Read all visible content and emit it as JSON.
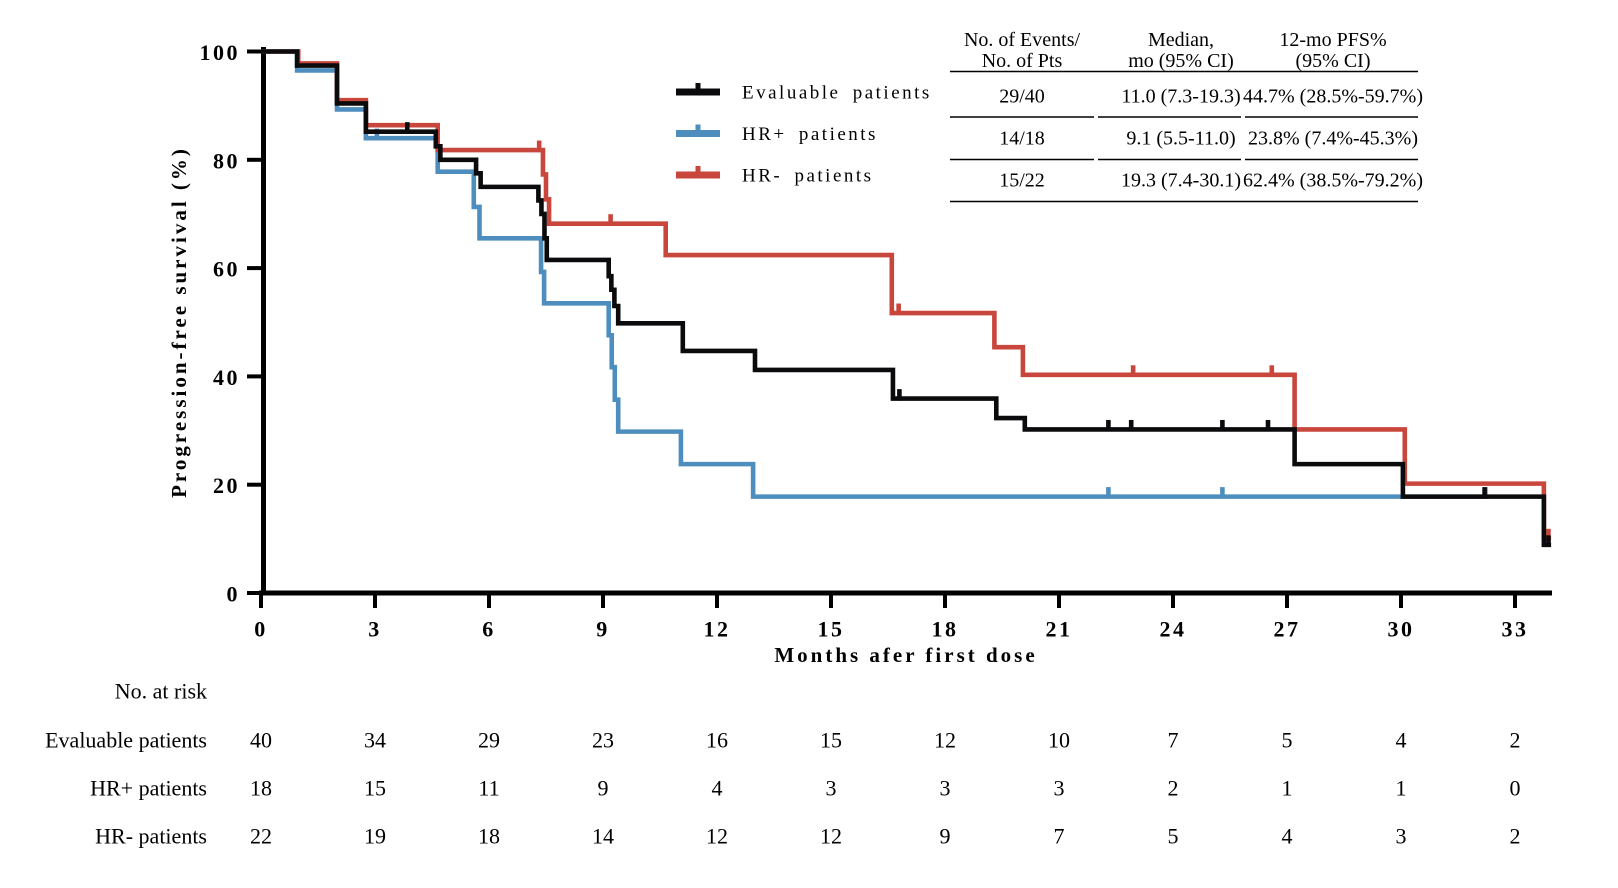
{
  "figure_title": "",
  "legend": [
    {
      "label": "Evaluable patients",
      "color": "#0b0b0d"
    },
    {
      "label": "HR+ patients",
      "color": "#4e8ebf"
    },
    {
      "label": "HR- patients",
      "color": "#c9463d"
    }
  ],
  "stats_table": {
    "headers": [
      {
        "line1": "No. of Events/",
        "line2": "No. of Pts"
      },
      {
        "line1": "Median,",
        "line2": "mo (95% CI)"
      },
      {
        "line1": "12-mo PFS%",
        "line2": "(95% CI)"
      }
    ],
    "rows": [
      [
        "29/40",
        "11.0 (7.3-19.3)",
        "44.7% (28.5%-59.7%)"
      ],
      [
        "14/18",
        "9.1 (5.5-11.0)",
        "23.8% (7.4%-45.3%)"
      ],
      [
        "15/22",
        "19.3 (7.4-30.1)",
        "62.4% (38.5%-79.2%)"
      ]
    ]
  },
  "risk_table": {
    "title": "No. at risk",
    "months": [
      0,
      3,
      6,
      9,
      12,
      15,
      18,
      21,
      24,
      27,
      30,
      33
    ],
    "rows": [
      {
        "label": "Evaluable patients",
        "values": [
          40,
          34,
          29,
          23,
          16,
          15,
          12,
          10,
          7,
          5,
          4,
          2
        ]
      },
      {
        "label": "HR+ patients",
        "values": [
          18,
          15,
          11,
          9,
          4,
          3,
          3,
          3,
          2,
          1,
          1,
          0
        ]
      },
      {
        "label": "HR- patients",
        "values": [
          22,
          19,
          18,
          14,
          12,
          12,
          9,
          7,
          5,
          4,
          3,
          2
        ]
      }
    ]
  },
  "chart_data": {
    "type": "line",
    "subtype": "kaplan-meier-step",
    "xlabel": "Months afer first dose",
    "ylabel": "Progression-free survival (%)",
    "xlim": [
      0,
      34
    ],
    "ylim": [
      0,
      100
    ],
    "x_ticks": [
      0,
      3,
      6,
      9,
      12,
      15,
      18,
      21,
      24,
      27,
      30,
      33
    ],
    "y_ticks": [
      0,
      20,
      40,
      60,
      80,
      100
    ],
    "grid": false,
    "legend_position": "upper-center-left",
    "series": [
      {
        "name": "Evaluable patients",
        "color": "#0b0b0d",
        "steps": [
          [
            0,
            100
          ],
          [
            0.95,
            97.4
          ],
          [
            2.0,
            90.4
          ],
          [
            2.76,
            85.2
          ],
          [
            4.6,
            82.5
          ],
          [
            4.72,
            80.0
          ],
          [
            5.66,
            77.5
          ],
          [
            5.78,
            75.0
          ],
          [
            7.3,
            72.5
          ],
          [
            7.38,
            70.0
          ],
          [
            7.46,
            65.5
          ],
          [
            7.52,
            61.5
          ],
          [
            9.15,
            58.5
          ],
          [
            9.22,
            56.0
          ],
          [
            9.3,
            53.0
          ],
          [
            9.4,
            49.8
          ],
          [
            11.1,
            44.7
          ],
          [
            13.0,
            41.2
          ],
          [
            16.63,
            35.9
          ],
          [
            19.35,
            32.3
          ],
          [
            20.1,
            30.2
          ],
          [
            27.2,
            23.8
          ],
          [
            30.05,
            17.8
          ],
          [
            33.76,
            8.9
          ]
        ],
        "end": 33.95,
        "censors": [
          [
            3.85,
            85.2
          ],
          [
            16.8,
            35.9
          ],
          [
            22.3,
            30.2
          ],
          [
            22.9,
            30.2
          ],
          [
            25.3,
            30.2
          ],
          [
            26.5,
            30.2
          ],
          [
            32.2,
            17.8
          ],
          [
            33.88,
            8.9
          ]
        ],
        "median_mo": 11.0,
        "pfs_12mo_pct": 44.7
      },
      {
        "name": "HR+ patients",
        "color": "#4e8ebf",
        "steps": [
          [
            0,
            100
          ],
          [
            0.95,
            96.5
          ],
          [
            2.0,
            89.3
          ],
          [
            2.76,
            84.0
          ],
          [
            4.65,
            77.8
          ],
          [
            5.6,
            71.3
          ],
          [
            5.75,
            65.5
          ],
          [
            7.37,
            59.3
          ],
          [
            7.45,
            53.5
          ],
          [
            9.15,
            47.6
          ],
          [
            9.23,
            41.7
          ],
          [
            9.31,
            35.7
          ],
          [
            9.4,
            29.8
          ],
          [
            11.05,
            23.8
          ],
          [
            12.95,
            17.8
          ]
        ],
        "end": 32.3,
        "censors": [
          [
            3.05,
            84.0
          ],
          [
            22.3,
            17.8
          ],
          [
            25.3,
            17.8
          ],
          [
            32.22,
            17.8
          ]
        ],
        "median_mo": 9.1,
        "pfs_12mo_pct": 23.8
      },
      {
        "name": "HR- patients",
        "color": "#c9463d",
        "steps": [
          [
            0,
            100
          ],
          [
            0.98,
            97.8
          ],
          [
            2.0,
            91.0
          ],
          [
            2.76,
            86.4
          ],
          [
            4.65,
            81.8
          ],
          [
            7.42,
            77.3
          ],
          [
            7.5,
            72.7
          ],
          [
            7.58,
            68.2
          ],
          [
            10.65,
            62.4
          ],
          [
            16.6,
            51.7
          ],
          [
            19.3,
            45.4
          ],
          [
            20.05,
            40.3
          ],
          [
            27.2,
            30.2
          ],
          [
            30.1,
            20.2
          ],
          [
            33.76,
            10.1
          ]
        ],
        "end": 33.95,
        "censors": [
          [
            7.32,
            81.8
          ],
          [
            9.2,
            68.2
          ],
          [
            16.78,
            51.7
          ],
          [
            22.95,
            40.3
          ],
          [
            26.6,
            40.3
          ],
          [
            33.88,
            10.1
          ]
        ],
        "median_mo": 19.3,
        "pfs_12mo_pct": 62.4
      }
    ]
  }
}
